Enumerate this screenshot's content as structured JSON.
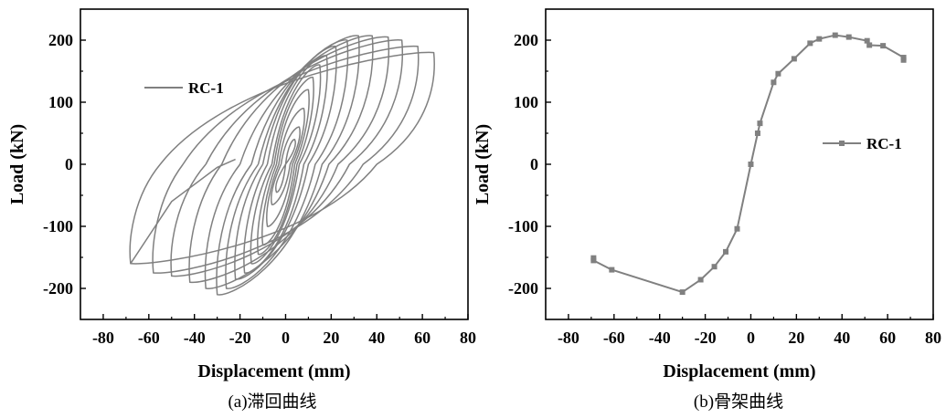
{
  "figure": {
    "caption_a": "(a)滞回曲线",
    "caption_b": "(b)骨架曲线"
  },
  "colors": {
    "series": "#808080",
    "axis": "#000000"
  },
  "chart_data": [
    {
      "type": "line",
      "xlabel": "Displacement (mm)",
      "ylabel": "Load (kN)",
      "xlim": [
        -90,
        80
      ],
      "ylim": [
        -250,
        250
      ],
      "xticks": [
        -80,
        -60,
        -40,
        -20,
        0,
        20,
        40,
        60,
        80
      ],
      "yticks": [
        -200,
        -100,
        0,
        100,
        200
      ],
      "legend": {
        "label": "RC-1",
        "placement": "upper-left",
        "marker": "none"
      },
      "series": [
        {
          "name": "RC-1",
          "loops": [
            {
              "pos": [
                4,
                40
              ],
              "neg": [
                -4,
                -45
              ],
              "rpos": 0,
              "rneg": 0
            },
            {
              "pos": [
                6,
                60
              ],
              "neg": [
                -6,
                -65
              ],
              "rpos": 2,
              "rneg": -2
            },
            {
              "pos": [
                8,
                90
              ],
              "neg": [
                -8,
                -100
              ],
              "rpos": 3,
              "rneg": -3
            },
            {
              "pos": [
                10,
                120
              ],
              "neg": [
                -10,
                -130
              ],
              "rpos": 4,
              "rneg": -4
            },
            {
              "pos": [
                12,
                140
              ],
              "neg": [
                -12,
                -145
              ],
              "rpos": 5,
              "rneg": -5
            },
            {
              "pos": [
                15,
                160
              ],
              "neg": [
                -15,
                -160
              ],
              "rpos": 6,
              "rneg": -6
            },
            {
              "pos": [
                18,
                175
              ],
              "neg": [
                -18,
                -175
              ],
              "rpos": 8,
              "rneg": -8
            },
            {
              "pos": [
                22,
                190
              ],
              "neg": [
                -22,
                -185
              ],
              "rpos": 10,
              "rneg": -10
            },
            {
              "pos": [
                27,
                200
              ],
              "neg": [
                -26,
                -200
              ],
              "rpos": 13,
              "rneg": -12
            },
            {
              "pos": [
                32,
                207
              ],
              "neg": [
                -30,
                -210
              ],
              "rpos": 16,
              "rneg": -15
            },
            {
              "pos": [
                38,
                207
              ],
              "neg": [
                -35,
                -200
              ],
              "rpos": 19,
              "rneg": -20
            },
            {
              "pos": [
                45,
                205
              ],
              "neg": [
                -42,
                -190
              ],
              "rpos": 23,
              "rneg": -28
            },
            {
              "pos": [
                51,
                200
              ],
              "neg": [
                -50,
                -180
              ],
              "rpos": 28,
              "rneg": -35
            },
            {
              "pos": [
                58,
                190
              ],
              "neg": [
                -58,
                -175
              ],
              "rpos": 34,
              "rneg": -45
            },
            {
              "pos": [
                65,
                180
              ],
              "neg": [
                -68,
                -160
              ],
              "rpos": 40,
              "rneg": -55
            }
          ],
          "tail": [
            [
              -68,
              -160
            ],
            [
              -50,
              -60
            ],
            [
              -30,
              -5
            ],
            [
              -22,
              8
            ]
          ]
        }
      ]
    },
    {
      "type": "line",
      "xlabel": "Displacement (mm)",
      "ylabel": "Load (kN)",
      "xlim": [
        -90,
        80
      ],
      "ylim": [
        -250,
        250
      ],
      "xticks": [
        -80,
        -60,
        -40,
        -20,
        0,
        20,
        40,
        60,
        80
      ],
      "yticks": [
        -200,
        -100,
        0,
        100,
        200
      ],
      "legend": {
        "label": "RC-1",
        "placement": "right",
        "marker": "square"
      },
      "series": [
        {
          "name": "RC-1",
          "x": [
            -69,
            -69,
            -61,
            -30,
            -22,
            -16,
            -11,
            -6,
            0,
            3,
            4,
            10,
            12,
            19,
            26,
            30,
            37,
            43,
            51,
            52,
            58,
            67,
            67
          ],
          "y": [
            -151,
            -155,
            -170,
            -206,
            -186,
            -165,
            -141,
            -104,
            0,
            50,
            66,
            132,
            146,
            170,
            195,
            202,
            208,
            205,
            199,
            192,
            191,
            172,
            168
          ]
        }
      ]
    }
  ]
}
